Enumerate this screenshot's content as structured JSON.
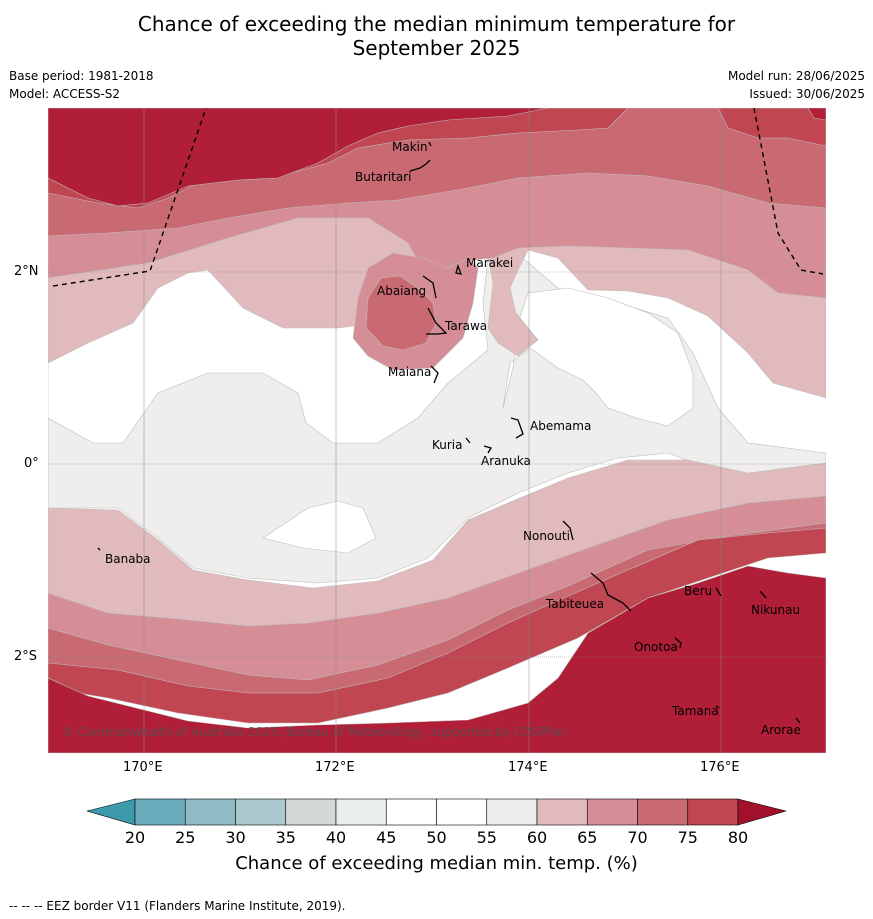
{
  "title_line1": "Chance of exceeding the median minimum temperature for",
  "title_line2": "September 2025",
  "base_period": "Base period: 1981-2018",
  "model": "Model: ACCESS-S2",
  "model_run": "Model run: 28/06/2025",
  "issued": "Issued: 30/06/2025",
  "lat_labels": [
    "2°N",
    "0°",
    "2°S"
  ],
  "lon_labels": [
    "170°E",
    "172°E",
    "174°E",
    "176°E"
  ],
  "places": [
    "Makin",
    "Butaritari",
    "Marakei",
    "Abaiang",
    "Tarawa",
    "Maiana",
    "Abemama",
    "Kuria",
    "Aranuka",
    "Banaba",
    "Nonouti",
    "Tabiteuea",
    "Beru",
    "Nikunau",
    "Onotoa",
    "Tamana",
    "Arorae"
  ],
  "copyright": "© Commonwealth of Australia 2025, Bureau of Meteorology, supported by COSPPac",
  "colorbar": {
    "ticks": [
      "20",
      "25",
      "30",
      "35",
      "40",
      "45",
      "50",
      "55",
      "60",
      "65",
      "70",
      "75",
      "80"
    ],
    "colors": [
      "#6aacbc",
      "#8ebbc6",
      "#acc8ce",
      "#d3d7d8",
      "#e9eeef",
      "#ffffff",
      "#ffffff",
      "#efeeec",
      "#e1babd",
      "#d58e96",
      "#c96a73",
      "#c04652",
      "#b01e37"
    ],
    "low_extend_color": "#3d9aaa",
    "high_extend_color": "#a3102c",
    "title": "Chance of exceeding median min. temp. (%)"
  },
  "footnote": "--  --  -- EEZ border V11 (Flanders Marine Institute, 2019)."
}
